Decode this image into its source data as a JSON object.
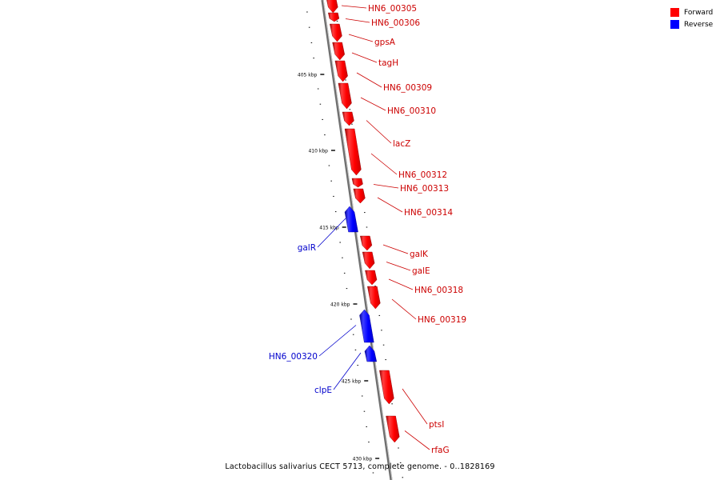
{
  "colors": {
    "forward": "#ff0000",
    "reverse": "#0000ff",
    "backbone": "#777777",
    "background": "#ffffff"
  },
  "legend": {
    "forward_label": "Forward",
    "reverse_label": "Reverse"
  },
  "caption": "Lactobacillus salivarius CECT 5713, complete genome. - 0..1828169",
  "ruler": {
    "unit": "kbp",
    "major_ticks": [
      "405 kbp",
      "410 kbp",
      "415 kbp",
      "420 kbp",
      "425 kbp",
      "430 kbp"
    ]
  },
  "genes": [
    {
      "name": "HN6_00305",
      "strand": "forward"
    },
    {
      "name": "HN6_00306",
      "strand": "forward"
    },
    {
      "name": "gpsA",
      "strand": "forward"
    },
    {
      "name": "tagH",
      "strand": "forward"
    },
    {
      "name": "HN6_00309",
      "strand": "forward"
    },
    {
      "name": "HN6_00310",
      "strand": "forward"
    },
    {
      "name": "lacZ",
      "strand": "forward"
    },
    {
      "name": "HN6_00312",
      "strand": "forward"
    },
    {
      "name": "HN6_00313",
      "strand": "forward"
    },
    {
      "name": "HN6_00314",
      "strand": "forward"
    },
    {
      "name": "galR",
      "strand": "reverse"
    },
    {
      "name": "galK",
      "strand": "forward"
    },
    {
      "name": "galE",
      "strand": "forward"
    },
    {
      "name": "HN6_00318",
      "strand": "forward"
    },
    {
      "name": "HN6_00319",
      "strand": "forward"
    },
    {
      "name": "HN6_00320",
      "strand": "reverse"
    },
    {
      "name": "clpE",
      "strand": "reverse"
    },
    {
      "name": "ptsI",
      "strand": "forward"
    },
    {
      "name": "rfaG",
      "strand": "forward"
    }
  ]
}
